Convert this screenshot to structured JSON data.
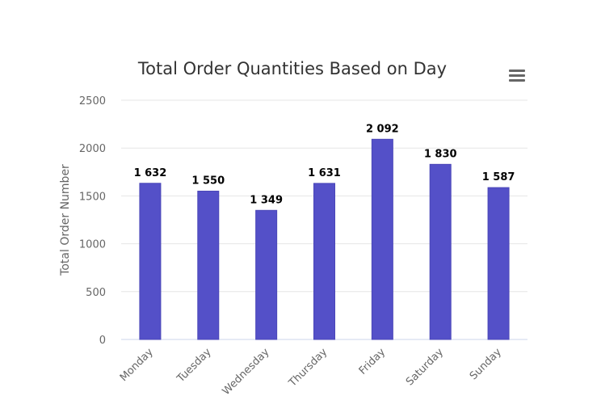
{
  "chart_data": {
    "type": "bar",
    "title": "Total Order Quantities Based on Day",
    "xlabel": "",
    "ylabel": "Total Order Number",
    "categories": [
      "Monday",
      "Tuesday",
      "Wednesday",
      "Thursday",
      "Friday",
      "Saturday",
      "Sunday"
    ],
    "values": [
      1632,
      1550,
      1349,
      1631,
      2092,
      1830,
      1587
    ],
    "data_labels": [
      "1 632",
      "1 550",
      "1 349",
      "1 631",
      "2 092",
      "1 830",
      "1 587"
    ],
    "y_ticks": [
      "0",
      "500",
      "1000",
      "1500",
      "2000",
      "2500"
    ],
    "ylim": [
      0,
      2500
    ],
    "grid": true,
    "legend": false,
    "bar_color": "#5450c8",
    "bar_border_color": "#4a46b8",
    "grid_color": "#e6e6e6",
    "axis_color": "#ccd6eb"
  },
  "menu": {
    "icon": "hamburger-menu-icon"
  }
}
